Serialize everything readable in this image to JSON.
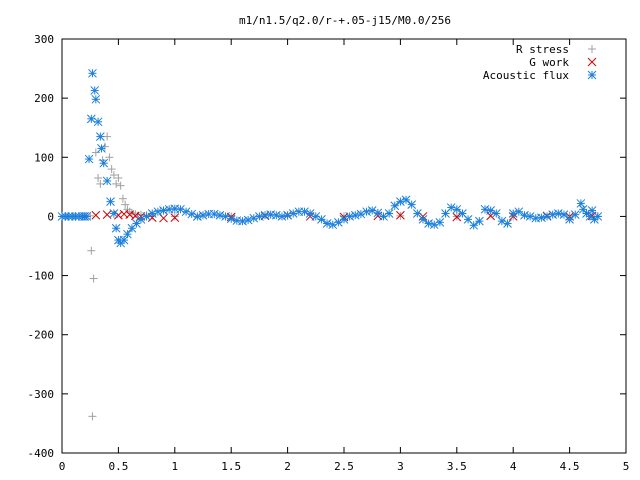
{
  "chart_data": {
    "type": "scatter",
    "title": "m1/n1.5/q2.0/r-+.05-j15/M0.0/256",
    "xlabel": "",
    "ylabel": "",
    "xlim": [
      0,
      5
    ],
    "ylim": [
      -400,
      300
    ],
    "x_ticks": [
      "0",
      "0.5",
      "1",
      "1.5",
      "2",
      "2.5",
      "3",
      "3.5",
      "4",
      "4.5",
      "5"
    ],
    "y_ticks": [
      "300",
      "200",
      "100",
      "0",
      "-100",
      "-200",
      "-300",
      "-400"
    ],
    "grid": false,
    "legend_position": "top-right",
    "series": [
      {
        "name": "R stress",
        "marker": "plus",
        "color": "#a0a0a0",
        "points": [
          [
            0.0,
            0
          ],
          [
            0.05,
            0
          ],
          [
            0.1,
            0
          ],
          [
            0.15,
            0
          ],
          [
            0.2,
            0
          ],
          [
            0.25,
            1
          ],
          [
            0.26,
            -58
          ],
          [
            0.28,
            -105
          ],
          [
            0.27,
            -338
          ],
          [
            0.3,
            108
          ],
          [
            0.32,
            65
          ],
          [
            0.34,
            55
          ],
          [
            0.36,
            95
          ],
          [
            0.38,
            118
          ],
          [
            0.4,
            135
          ],
          [
            0.42,
            100
          ],
          [
            0.44,
            80
          ],
          [
            0.46,
            70
          ],
          [
            0.48,
            55
          ],
          [
            0.5,
            65
          ],
          [
            0.52,
            52
          ],
          [
            0.54,
            30
          ],
          [
            0.56,
            20
          ],
          [
            0.58,
            12
          ],
          [
            0.6,
            8
          ],
          [
            0.62,
            6
          ],
          [
            0.65,
            4
          ],
          [
            0.7,
            3
          ],
          [
            0.75,
            2
          ],
          [
            0.8,
            1
          ],
          [
            1.0,
            0
          ],
          [
            1.5,
            0
          ],
          [
            2.0,
            1
          ],
          [
            2.5,
            0
          ],
          [
            3.0,
            1
          ],
          [
            3.5,
            0
          ],
          [
            4.0,
            0
          ],
          [
            4.5,
            1
          ],
          [
            4.75,
            0
          ]
        ]
      },
      {
        "name": "G work",
        "marker": "cross",
        "color": "#cc0000",
        "points": [
          [
            0.2,
            0
          ],
          [
            0.3,
            2
          ],
          [
            0.4,
            3
          ],
          [
            0.5,
            2
          ],
          [
            0.55,
            4
          ],
          [
            0.6,
            3
          ],
          [
            0.65,
            1
          ],
          [
            0.7,
            0
          ],
          [
            0.8,
            -2
          ],
          [
            0.9,
            -3
          ],
          [
            1.0,
            -2
          ],
          [
            1.2,
            0
          ],
          [
            1.5,
            -1
          ],
          [
            1.8,
            1
          ],
          [
            2.0,
            2
          ],
          [
            2.2,
            0
          ],
          [
            2.5,
            -1
          ],
          [
            2.8,
            1
          ],
          [
            3.0,
            2
          ],
          [
            3.2,
            0
          ],
          [
            3.5,
            -1
          ],
          [
            3.8,
            1
          ],
          [
            4.0,
            0
          ],
          [
            4.3,
            1
          ],
          [
            4.5,
            0
          ],
          [
            4.7,
            1
          ]
        ]
      },
      {
        "name": "Acoustic flux",
        "marker": "star",
        "color": "#1a7fdc",
        "points": [
          [
            0.0,
            0
          ],
          [
            0.03,
            0
          ],
          [
            0.06,
            0
          ],
          [
            0.09,
            0
          ],
          [
            0.12,
            0
          ],
          [
            0.15,
            0
          ],
          [
            0.18,
            0
          ],
          [
            0.2,
            0
          ],
          [
            0.22,
            0
          ],
          [
            0.24,
            97
          ],
          [
            0.26,
            165
          ],
          [
            0.27,
            242
          ],
          [
            0.29,
            213
          ],
          [
            0.3,
            198
          ],
          [
            0.32,
            160
          ],
          [
            0.34,
            135
          ],
          [
            0.35,
            115
          ],
          [
            0.37,
            90
          ],
          [
            0.4,
            60
          ],
          [
            0.43,
            25
          ],
          [
            0.46,
            5
          ],
          [
            0.48,
            -20
          ],
          [
            0.5,
            -40
          ],
          [
            0.52,
            -45
          ],
          [
            0.55,
            -40
          ],
          [
            0.58,
            -30
          ],
          [
            0.62,
            -20
          ],
          [
            0.66,
            -12
          ],
          [
            0.7,
            -5
          ],
          [
            0.75,
            0
          ],
          [
            0.8,
            5
          ],
          [
            0.85,
            8
          ],
          [
            0.9,
            10
          ],
          [
            0.95,
            12
          ],
          [
            1.0,
            13
          ],
          [
            1.05,
            12
          ],
          [
            1.1,
            8
          ],
          [
            1.15,
            4
          ],
          [
            1.2,
            0
          ],
          [
            1.25,
            2
          ],
          [
            1.3,
            4
          ],
          [
            1.35,
            4
          ],
          [
            1.4,
            2
          ],
          [
            1.45,
            0
          ],
          [
            1.5,
            -4
          ],
          [
            1.55,
            -7
          ],
          [
            1.6,
            -8
          ],
          [
            1.65,
            -6
          ],
          [
            1.7,
            -3
          ],
          [
            1.75,
            0
          ],
          [
            1.8,
            2
          ],
          [
            1.85,
            3
          ],
          [
            1.9,
            2
          ],
          [
            1.95,
            0
          ],
          [
            2.0,
            2
          ],
          [
            2.05,
            5
          ],
          [
            2.1,
            8
          ],
          [
            2.15,
            8
          ],
          [
            2.2,
            5
          ],
          [
            2.25,
            0
          ],
          [
            2.3,
            -5
          ],
          [
            2.35,
            -12
          ],
          [
            2.4,
            -14
          ],
          [
            2.45,
            -10
          ],
          [
            2.5,
            -5
          ],
          [
            2.55,
            0
          ],
          [
            2.6,
            2
          ],
          [
            2.65,
            4
          ],
          [
            2.7,
            8
          ],
          [
            2.75,
            10
          ],
          [
            2.8,
            6
          ],
          [
            2.85,
            0
          ],
          [
            2.9,
            5
          ],
          [
            2.95,
            18
          ],
          [
            3.0,
            25
          ],
          [
            3.05,
            28
          ],
          [
            3.1,
            20
          ],
          [
            3.15,
            5
          ],
          [
            3.2,
            -5
          ],
          [
            3.25,
            -12
          ],
          [
            3.3,
            -14
          ],
          [
            3.35,
            -10
          ],
          [
            3.4,
            5
          ],
          [
            3.45,
            15
          ],
          [
            3.5,
            12
          ],
          [
            3.55,
            5
          ],
          [
            3.6,
            -5
          ],
          [
            3.65,
            -15
          ],
          [
            3.7,
            -8
          ],
          [
            3.75,
            12
          ],
          [
            3.8,
            10
          ],
          [
            3.85,
            5
          ],
          [
            3.9,
            -8
          ],
          [
            3.95,
            -12
          ],
          [
            4.0,
            5
          ],
          [
            4.05,
            8
          ],
          [
            4.1,
            2
          ],
          [
            4.15,
            0
          ],
          [
            4.2,
            -3
          ],
          [
            4.25,
            -2
          ],
          [
            4.3,
            0
          ],
          [
            4.35,
            3
          ],
          [
            4.4,
            5
          ],
          [
            4.45,
            3
          ],
          [
            4.5,
            -5
          ],
          [
            4.55,
            3
          ],
          [
            4.6,
            22
          ],
          [
            4.62,
            12
          ],
          [
            4.65,
            5
          ],
          [
            4.68,
            0
          ],
          [
            4.7,
            10
          ],
          [
            4.72,
            -5
          ],
          [
            4.75,
            0
          ]
        ]
      }
    ]
  }
}
